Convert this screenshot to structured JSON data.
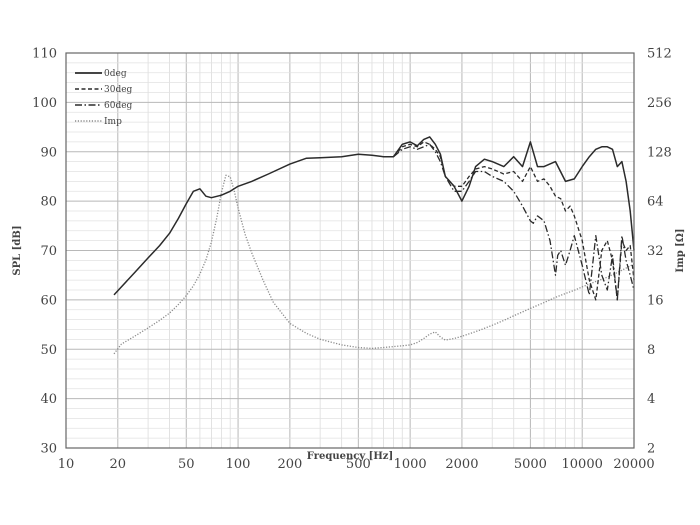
{
  "chart_data": {
    "type": "line",
    "title": "",
    "xlabel": "Frequency [Hz]",
    "ylabel": "SPL [dB]",
    "y2label": "Imp [Ω]",
    "xscale": "log",
    "xlim": [
      10,
      20000
    ],
    "ylim": [
      30,
      110
    ],
    "y2scale": "log2",
    "y2lim": [
      2,
      512
    ],
    "grid": true,
    "legend_position": "top-left",
    "x_ticks": [
      "10",
      "20",
      "50",
      "100",
      "200",
      "500",
      "1000",
      "2000",
      "5000",
      "10000",
      "20000"
    ],
    "x_tick_values": [
      10,
      20,
      50,
      100,
      200,
      500,
      1000,
      2000,
      5000,
      10000,
      20000
    ],
    "y_ticks": [
      "30",
      "40",
      "50",
      "60",
      "70",
      "80",
      "90",
      "100",
      "110"
    ],
    "y_tick_values": [
      30,
      40,
      50,
      60,
      70,
      80,
      90,
      100,
      110
    ],
    "y2_ticks": [
      "2",
      "4",
      "8",
      "16",
      "32",
      "64",
      "128",
      "256",
      "512"
    ],
    "y2_tick_values": [
      2,
      4,
      8,
      16,
      32,
      64,
      128,
      256,
      512
    ],
    "series": [
      {
        "name": "0deg",
        "axis": "left",
        "style": "solid",
        "x": [
          19,
          25,
          30,
          35,
          40,
          45,
          50,
          55,
          60,
          65,
          70,
          80,
          90,
          100,
          120,
          150,
          200,
          250,
          300,
          400,
          500,
          600,
          700,
          800,
          900,
          1000,
          1100,
          1200,
          1300,
          1400,
          1500,
          1600,
          1800,
          2000,
          2200,
          2400,
          2700,
          3000,
          3500,
          4000,
          4500,
          5000,
          5500,
          6000,
          7000,
          8000,
          9000,
          10000,
          11000,
          12000,
          13000,
          14000,
          15000,
          16000,
          17000,
          18000,
          19000,
          20000
        ],
        "y": [
          61,
          65.5,
          68.5,
          71,
          73.5,
          76.5,
          79.5,
          82,
          82.5,
          81,
          80.7,
          81.2,
          82,
          83,
          84,
          85.5,
          87.5,
          88.7,
          88.8,
          89,
          89.5,
          89.3,
          89,
          89,
          91.5,
          92,
          91.2,
          92.5,
          93,
          91.5,
          89.5,
          85,
          83,
          80,
          83,
          87,
          88.5,
          88,
          87,
          89,
          87,
          92,
          87,
          87,
          88,
          84,
          84.5,
          87,
          89,
          90.5,
          91,
          91,
          90.5,
          87,
          88,
          84,
          78,
          70
        ]
      },
      {
        "name": "30deg",
        "axis": "left",
        "style": "dashed",
        "x": [
          800,
          900,
          1000,
          1100,
          1200,
          1300,
          1400,
          1500,
          1600,
          1800,
          2000,
          2200,
          2400,
          2700,
          3000,
          3500,
          4000,
          4500,
          5000,
          5500,
          6000,
          6500,
          7000,
          7500,
          8000,
          8500,
          9000,
          10000,
          11000,
          12000,
          13000,
          14000,
          15000,
          16000,
          17000,
          18000,
          19000,
          20000
        ],
        "y": [
          89,
          91,
          91.5,
          91,
          92,
          91.5,
          90.5,
          89,
          85,
          83,
          83,
          85,
          86.5,
          87,
          86.5,
          85.5,
          86,
          84,
          87,
          84,
          84.5,
          83,
          81,
          80.5,
          78,
          79,
          77,
          72,
          64,
          60,
          70,
          72,
          68,
          60,
          72,
          70,
          71,
          64
        ]
      },
      {
        "name": "60deg",
        "axis": "left",
        "style": "dashdot",
        "x": [
          800,
          900,
          1000,
          1100,
          1200,
          1300,
          1400,
          1500,
          1600,
          1800,
          2000,
          2200,
          2400,
          2700,
          3000,
          3500,
          4000,
          4500,
          5000,
          5200,
          5500,
          6000,
          6500,
          7000,
          7200,
          7500,
          8000,
          8500,
          9000,
          10000,
          11000,
          12000,
          13000,
          14000,
          15000,
          16000,
          17000,
          18000,
          19000,
          20000
        ],
        "y": [
          89,
          90.5,
          91,
          90.5,
          91,
          91.5,
          90,
          88,
          85,
          82,
          82,
          84,
          86,
          86,
          85,
          84,
          82,
          79,
          76,
          75.5,
          77,
          76,
          72,
          65,
          69,
          70,
          67,
          70,
          73,
          67,
          61,
          73,
          65,
          62,
          69,
          60,
          73,
          68,
          65,
          62
        ]
      },
      {
        "name": "Imp",
        "axis": "right",
        "style": "dotted",
        "x": [
          19,
          21,
          25,
          30,
          35,
          40,
          45,
          50,
          55,
          60,
          65,
          70,
          75,
          80,
          85,
          90,
          95,
          100,
          110,
          120,
          140,
          160,
          200,
          250,
          300,
          400,
          500,
          600,
          700,
          800,
          900,
          1000,
          1100,
          1200,
          1300,
          1400,
          1500,
          1600,
          1800,
          2000,
          2500,
          3000,
          3500,
          4000,
          5000,
          6000,
          7000,
          8000,
          9000,
          10000,
          12000,
          14000,
          16000,
          18000,
          20000
        ],
        "y": [
          7.5,
          8.6,
          9.6,
          10.8,
          12,
          13.3,
          15,
          17,
          19.5,
          23,
          28,
          36,
          50,
          72,
          92,
          90,
          74,
          58,
          40,
          31,
          21,
          15.5,
          11.5,
          10,
          9.2,
          8.5,
          8.2,
          8.1,
          8.2,
          8.3,
          8.4,
          8.5,
          8.8,
          9.3,
          9.9,
          10.2,
          9.5,
          9.1,
          9.3,
          9.6,
          10.4,
          11.2,
          12,
          12.8,
          14.2,
          15.4,
          16.6,
          17.5,
          18.3,
          19.2,
          20.7,
          22,
          23.5,
          25,
          26.5
        ]
      }
    ]
  }
}
